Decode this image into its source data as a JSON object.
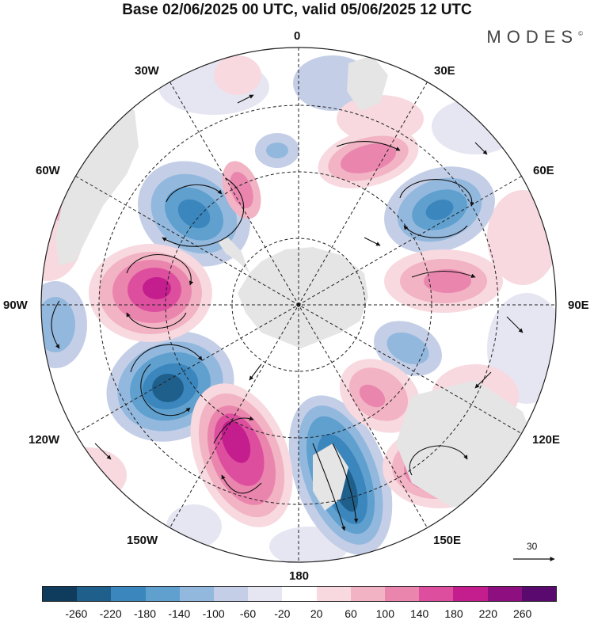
{
  "title": "Base 02/06/2025 00 UTC, valid 05/06/2025 12 UTC",
  "brand": "MODES",
  "brand_mark": "©",
  "longitude_labels": {
    "0": "0",
    "30E": "30E",
    "60E": "60E",
    "90E": "90E",
    "120E": "120E",
    "150E": "150E",
    "180": "180",
    "150W": "150W",
    "120W": "120W",
    "90W": "90W",
    "60W": "60W",
    "30W": "30W"
  },
  "reference_vector": {
    "value": "30"
  },
  "colorbar": {
    "colors": [
      "#0f3b5c",
      "#1f5f8b",
      "#3a86bd",
      "#5fa0cf",
      "#93b8de",
      "#c4cfe7",
      "#e6e6f2",
      "#ffffff",
      "#f7d9df",
      "#f2b3c4",
      "#ea86ad",
      "#dd4f9e",
      "#c41d8d",
      "#8e1080",
      "#5a0a6e"
    ],
    "ticks": [
      "-260",
      "-220",
      "-180",
      "-140",
      "-100",
      "-60",
      "-20",
      "20",
      "60",
      "100",
      "140",
      "180",
      "220",
      "260"
    ]
  },
  "anomaly_colors": {
    "neg1": "#e6e6f2",
    "neg2": "#c4cfe7",
    "neg3": "#93b8de",
    "neg4": "#5fa0cf",
    "neg5": "#3a86bd",
    "neg6": "#1f5f8b",
    "neg7": "#0f3b5c",
    "pos1": "#f7d9df",
    "pos2": "#f2b3c4",
    "pos3": "#ea86ad",
    "pos4": "#dd4f9e",
    "pos5": "#c41d8d",
    "pos6": "#8e1080"
  },
  "land_color": "#e5e5e5"
}
